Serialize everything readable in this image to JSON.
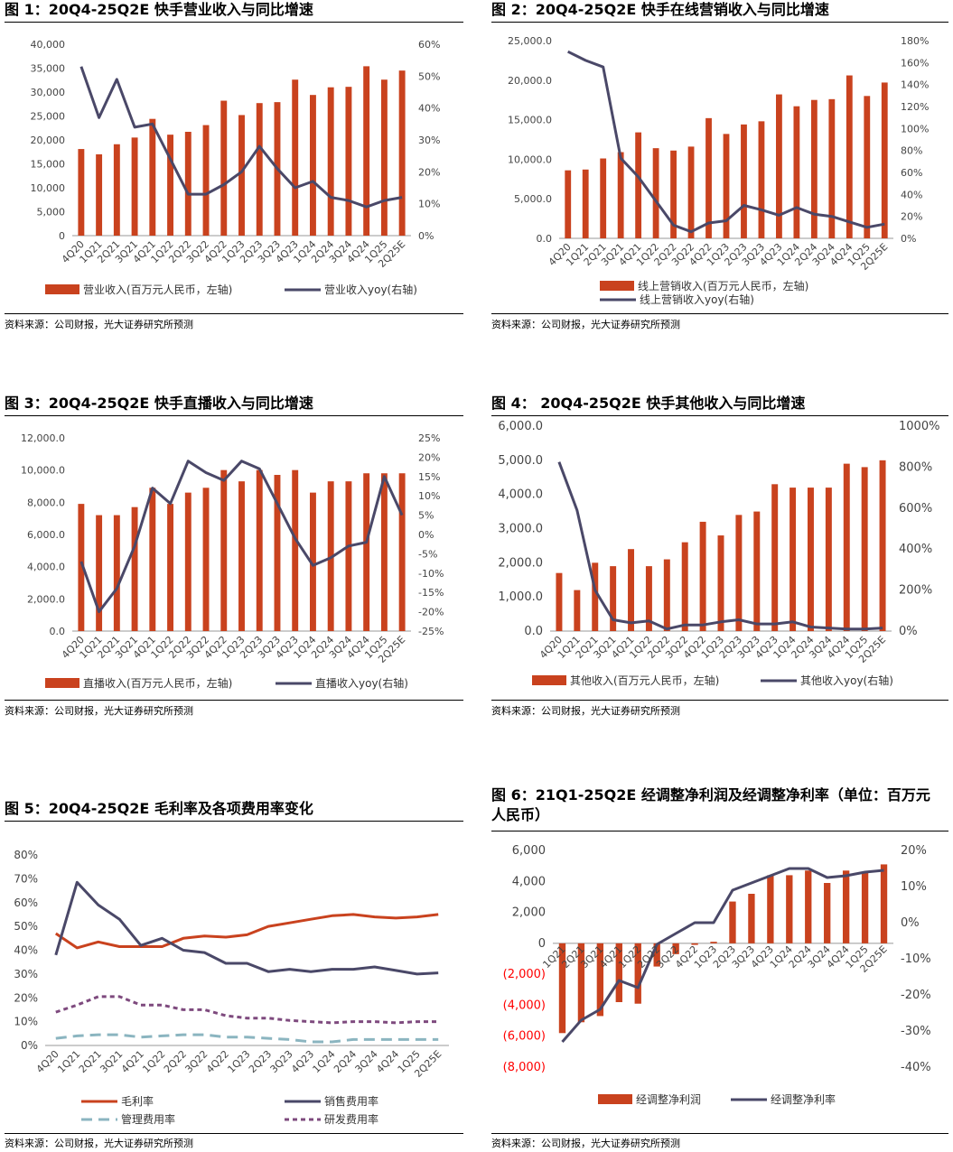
{
  "colors": {
    "bar": "#C9421E",
    "line": "#4A4868",
    "line2": "#C9421E",
    "line3": "#4A4868",
    "line4": "#8BB5C0",
    "line5": "#7E4A7E",
    "neg": "#FF0000"
  },
  "charts": [
    {
      "title": "图 1：20Q4-25Q2E  快手营业收入与同比增速",
      "source": "资料来源：公司财报，光大证券研究所预测",
      "chart_data": {
        "type": "bar+line",
        "categories": [
          "4Q20",
          "1Q21",
          "2Q21",
          "3Q21",
          "4Q21",
          "1Q22",
          "2Q22",
          "3Q22",
          "4Q22",
          "1Q23",
          "2Q23",
          "3Q23",
          "4Q23",
          "1Q24",
          "2Q24",
          "3Q24",
          "4Q24",
          "1Q25",
          "2Q25E"
        ],
        "bar_series": {
          "name": "营业收入(百万元人民币，左轴)",
          "values": [
            18100,
            17000,
            19100,
            20500,
            24400,
            21100,
            21700,
            23100,
            28200,
            25200,
            27700,
            27900,
            32600,
            29400,
            31000,
            31100,
            35400,
            32600,
            34500
          ]
        },
        "line_series": {
          "name": "营业收入yoy(右轴)",
          "values": [
            53,
            37,
            49,
            34,
            35,
            24,
            13,
            13,
            16,
            20,
            28,
            21,
            15,
            17,
            12,
            11,
            9,
            11,
            12
          ]
        },
        "left_ticks": [
          "40,000",
          "35,000",
          "30,000",
          "25,000",
          "20,000",
          "15,000",
          "10,000",
          "5,000",
          "0"
        ],
        "right_ticks": [
          "60%",
          "50%",
          "40%",
          "30%",
          "20%",
          "10%",
          "0%"
        ],
        "ylim_left": [
          0,
          40000
        ],
        "ylim_right": [
          0,
          60
        ]
      }
    },
    {
      "title": "图 2：20Q4-25Q2E 快手在线营销收入与同比增速",
      "source": "资料来源：公司财报，光大证券研究所预测",
      "chart_data": {
        "type": "bar+line",
        "categories": [
          "4Q20",
          "1Q21",
          "2Q21",
          "3Q21",
          "4Q21",
          "1Q22",
          "2Q22",
          "3Q22",
          "4Q22",
          "1Q23",
          "2Q23",
          "3Q23",
          "4Q23",
          "1Q24",
          "2Q24",
          "3Q24",
          "4Q24",
          "1Q25",
          "2Q25E"
        ],
        "bar_series": {
          "name": "线上营销收入(百万元人民币，左轴)",
          "values": [
            8600,
            8700,
            10100,
            10900,
            13400,
            11400,
            11100,
            11600,
            15200,
            13200,
            14400,
            14800,
            18200,
            16700,
            17500,
            17600,
            20600,
            18000,
            19700
          ]
        },
        "line_series": {
          "name": "线上营销收入yoy(右轴)",
          "values": [
            170,
            162,
            156,
            73,
            56,
            34,
            12,
            6,
            14,
            16,
            30,
            26,
            21,
            28,
            22,
            20,
            15,
            10,
            13
          ]
        },
        "left_ticks": [
          "25,000.0",
          "20,000.0",
          "15,000.0",
          "10,000.0",
          "5,000.0",
          "0.0"
        ],
        "right_ticks": [
          "180%",
          "160%",
          "140%",
          "120%",
          "100%",
          "80%",
          "60%",
          "40%",
          "20%",
          "0%"
        ],
        "ylim_left": [
          0,
          25000
        ],
        "ylim_right": [
          0,
          180
        ]
      }
    },
    {
      "title": "图 3：20Q4-25Q2E 快手直播收入与同比增速",
      "source": "资料来源：公司财报，光大证券研究所预测",
      "chart_data": {
        "type": "bar+line",
        "categories": [
          "4Q20",
          "1Q21",
          "2Q21",
          "3Q21",
          "4Q21",
          "1Q22",
          "2Q22",
          "3Q22",
          "4Q22",
          "1Q23",
          "2Q23",
          "3Q23",
          "4Q23",
          "1Q24",
          "2Q24",
          "3Q24",
          "4Q24",
          "1Q25",
          "2Q25E"
        ],
        "bar_series": {
          "name": "直播收入(百万元人民币，左轴)",
          "values": [
            7900,
            7200,
            7200,
            7700,
            8900,
            7900,
            8600,
            8900,
            10000,
            9300,
            10000,
            9700,
            10000,
            8600,
            9300,
            9300,
            9800,
            9800,
            9800
          ]
        },
        "line_series": {
          "name": "直播收入yoy(右轴)",
          "values": [
            -7,
            -20,
            -14,
            -3,
            12,
            8,
            19,
            16,
            14,
            19,
            17,
            8,
            -1,
            -8,
            -6,
            -3,
            -2,
            15,
            5
          ]
        },
        "left_ticks": [
          "12,000.0",
          "10,000.0",
          "8,000.0",
          "6,000.0",
          "4,000.0",
          "2,000.0",
          "0.0"
        ],
        "right_ticks": [
          "25%",
          "20%",
          "15%",
          "10%",
          "5%",
          "0%",
          "-5%",
          "-10%",
          "-15%",
          "-20%",
          "-25%"
        ],
        "ylim_left": [
          0,
          12000
        ],
        "ylim_right": [
          -25,
          25
        ]
      }
    },
    {
      "title": "图 4：  20Q4-25Q2E 快手其他收入与同比增速",
      "source": "资料来源：公司财报，光大证券研究所预测",
      "chart_data": {
        "type": "bar+line",
        "categories": [
          "4Q20",
          "1Q21",
          "2Q21",
          "3Q21",
          "4Q21",
          "1Q22",
          "2Q22",
          "3Q22",
          "4Q22",
          "1Q23",
          "2Q23",
          "3Q23",
          "4Q23",
          "1Q24",
          "2Q24",
          "3Q24",
          "4Q24",
          "1Q25",
          "2Q25E"
        ],
        "bar_series": {
          "name": "其他收入(百万元人民币，左轴)",
          "values": [
            1700,
            1200,
            2000,
            1900,
            2400,
            1900,
            2100,
            2600,
            3200,
            2800,
            3400,
            3500,
            4300,
            4200,
            4200,
            4200,
            4900,
            4800,
            5000
          ]
        },
        "line_series": {
          "name": "其他收入yoy(右轴)",
          "values": [
            825,
            590,
            200,
            55,
            40,
            50,
            10,
            30,
            30,
            45,
            55,
            35,
            35,
            45,
            20,
            15,
            10,
            10,
            15
          ]
        },
        "left_ticks": [
          "6,000.0",
          "5,000.0",
          "4,000.0",
          "3,000.0",
          "2,000.0",
          "1,000.0",
          "0.0"
        ],
        "right_ticks": [
          "1000%",
          "800%",
          "600%",
          "400%",
          "200%",
          "0%"
        ],
        "ylim_left": [
          0,
          6000
        ],
        "ylim_right": [
          0,
          1000
        ]
      }
    },
    {
      "title": "图 5：20Q4-25Q2E 毛利率及各项费用率变化",
      "source": "资料来源：公司财报，光大证券研究所预测",
      "chart_data": {
        "type": "line",
        "categories": [
          "4Q20",
          "1Q21",
          "2Q21",
          "3Q21",
          "4Q21",
          "1Q22",
          "2Q22",
          "3Q22",
          "4Q22",
          "1Q23",
          "2Q23",
          "3Q23",
          "4Q23",
          "1Q24",
          "2Q24",
          "3Q24",
          "4Q24",
          "1Q25",
          "2Q25E"
        ],
        "series": [
          {
            "name": "毛利率",
            "values": [
              47,
              41,
              43.5,
              41.5,
              41.5,
              41.5,
              45,
              46,
              45.5,
              46.5,
              50,
              51.5,
              53,
              54.5,
              55,
              54,
              53.5,
              54,
              55
            ],
            "style": "solid",
            "color": "#C9421E"
          },
          {
            "name": "销售费用率",
            "values": [
              38,
              68.5,
              59,
              53,
              42,
              45,
              40,
              39,
              34.5,
              34.5,
              31,
              32,
              31,
              32,
              32,
              33,
              31.5,
              30,
              30.5
            ],
            "style": "solid",
            "color": "#4A4868"
          },
          {
            "name": "管理费用率",
            "values": [
              3,
              4,
              4.5,
              4.5,
              3.5,
              4,
              4.5,
              4.5,
              3.5,
              3.5,
              3,
              2.5,
              1.5,
              1.5,
              2.5,
              2.5,
              2.5,
              2.5,
              2.5
            ],
            "style": "dashed",
            "color": "#8BB5C0"
          },
          {
            "name": "研发费用率",
            "values": [
              14,
              17,
              20.5,
              20.5,
              17,
              17,
              15,
              15,
              12.5,
              11.5,
              11.5,
              10.5,
              10,
              9.5,
              10,
              10,
              9.5,
              10,
              10
            ],
            "style": "dotted",
            "color": "#7E4A7E"
          }
        ],
        "left_ticks": [
          "80%",
          "70%",
          "60%",
          "50%",
          "40%",
          "30%",
          "20%",
          "10%",
          "0%"
        ],
        "ylim": [
          0,
          80
        ]
      }
    },
    {
      "title": "图 6：21Q1-25Q2E 经调整净利润及经调整净利率（单位：百万元人民币）",
      "source": "资料来源：公司财报，光大证券研究所预测",
      "chart_data": {
        "type": "bar+line",
        "categories": [
          "1Q21",
          "2Q21",
          "3Q21",
          "4Q21",
          "1Q22",
          "2Q22",
          "3Q22",
          "4Q22",
          "1Q23",
          "2Q23",
          "3Q23",
          "4Q23",
          "1Q24",
          "2Q24",
          "3Q24",
          "4Q24",
          "1Q25",
          "2Q25E"
        ],
        "bar_series": {
          "name": "经调整净利润",
          "values": [
            -5800,
            -5100,
            -4700,
            -3800,
            -3900,
            -1500,
            -700,
            -100,
            100,
            2700,
            3200,
            4400,
            4400,
            4700,
            3900,
            4700,
            4600,
            5100
          ]
        },
        "line_series": {
          "name": "经调整净利率",
          "values": [
            -33,
            -27,
            -24,
            -16,
            -18,
            -6,
            -3,
            0,
            0,
            9,
            11,
            13,
            15,
            15,
            12.5,
            13,
            14,
            14.5
          ]
        },
        "left_ticks": [
          "6,000",
          "4,000",
          "2,000",
          "0",
          "(2,000)",
          "(4,000)",
          "(6,000)",
          "(8,000)"
        ],
        "right_ticks": [
          "20%",
          "10%",
          "0%",
          "-10%",
          "-20%",
          "-30%",
          "-40%"
        ],
        "ylim_left": [
          -8000,
          6000
        ],
        "ylim_right": [
          -40,
          20
        ]
      }
    }
  ]
}
